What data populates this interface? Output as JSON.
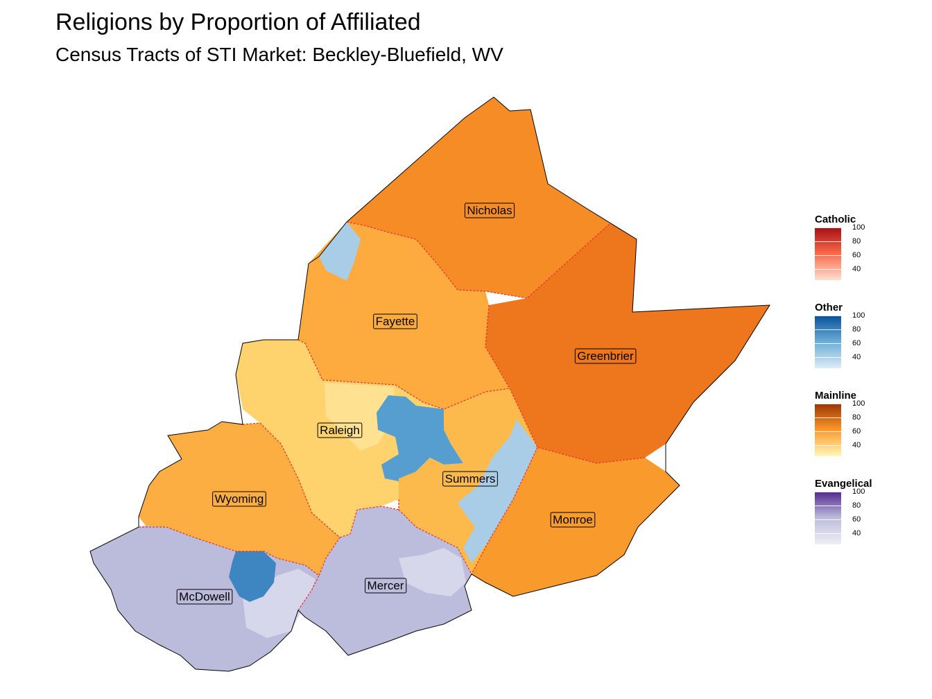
{
  "title": "Religions by Proportion of Affiliated",
  "subtitle": "Census Tracts of STI Market: Beckley-Bluefield, WV",
  "counties": [
    {
      "name": "Nicholas",
      "group": "Mainline",
      "level": 74
    },
    {
      "name": "Fayette",
      "group": "Mainline",
      "level": 60
    },
    {
      "name": "Greenbrier",
      "group": "Mainline",
      "level": 80
    },
    {
      "name": "Raleigh",
      "group": "Mainline",
      "level": 45
    },
    {
      "name": "Summers",
      "group": "Mainline",
      "level": 57
    },
    {
      "name": "Wyoming",
      "group": "Mainline",
      "level": 60
    },
    {
      "name": "Monroe",
      "group": "Mainline",
      "level": 72
    },
    {
      "name": "McDowell",
      "group": "Evangelical",
      "level": 45
    },
    {
      "name": "Mercer",
      "group": "Evangelical",
      "level": 44
    }
  ],
  "legend": [
    {
      "title": "Catholic",
      "ticks": [
        "100",
        "80",
        "60",
        "40"
      ],
      "color_low": "#fee0d2",
      "color_mid": "#fb6a4a",
      "color_high": "#a50f15"
    },
    {
      "title": "Other",
      "ticks": [
        "100",
        "80",
        "60",
        "40"
      ],
      "color_low": "#deebf7",
      "color_mid": "#6baed6",
      "color_high": "#08519c"
    },
    {
      "title": "Mainline",
      "ticks": [
        "100",
        "80",
        "60",
        "40"
      ],
      "color_low": "#fff7bc",
      "color_mid": "#fe9929",
      "color_high": "#993404"
    },
    {
      "title": "Evangelical",
      "ticks": [
        "100",
        "80",
        "60",
        "40"
      ],
      "color_low": "#efedf5",
      "color_mid": "#bcbddc",
      "color_high": "#54278f"
    }
  ],
  "colors": {
    "boundary": "#e8302a",
    "outline": "#000000"
  }
}
